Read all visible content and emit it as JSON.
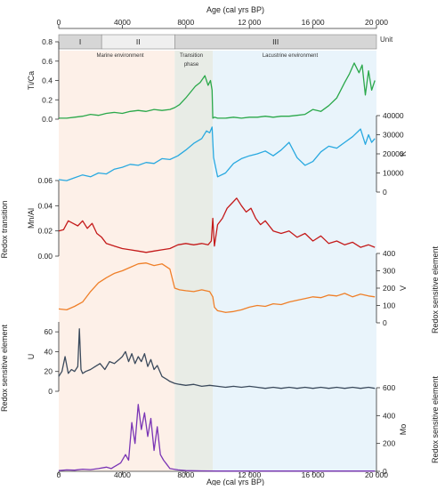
{
  "chart_data": {
    "type": "line",
    "title": "",
    "x_axis": {
      "label": "Age (cal yrs BP)",
      "range": [
        0,
        20000
      ],
      "ticks": [
        0,
        4000,
        8000,
        12000,
        16000,
        20000
      ],
      "tick_labels": [
        "0",
        "4000",
        "8000",
        "12 000",
        "16 000",
        "20 000"
      ]
    },
    "units_bar": {
      "label": "Unit",
      "units": [
        {
          "name": "I",
          "from": 0,
          "to": 2700,
          "color": "#d6d6d6"
        },
        {
          "name": "II",
          "from": 2700,
          "to": 7300,
          "color": "#efefef"
        },
        {
          "name": "III",
          "from": 7300,
          "to": 20000,
          "color": "#d6d6d6"
        }
      ]
    },
    "environments": [
      {
        "label": "Marine environment",
        "from": 0,
        "to": 7300,
        "color": "#fdf0e8"
      },
      {
        "label": "Transition phase",
        "from": 7300,
        "to": 9700,
        "color": "#e8ece6"
      },
      {
        "label": "Lacustrine environment",
        "from": 9700,
        "to": 20000,
        "color": "#e9f4fb"
      }
    ],
    "side_labels": [
      {
        "text": "Redox transition",
        "side": "left"
      },
      {
        "text": "Redox sensitive element",
        "side": "left"
      },
      {
        "text": "Redox sensitive element",
        "side": "right"
      },
      {
        "text": "Redox sensitive element",
        "side": "right"
      }
    ],
    "series": [
      {
        "label": "Ti/Ca",
        "side": "left",
        "color": "#2aa84a",
        "ylim": [
          0,
          0.8
        ],
        "ticks": [
          0.0,
          0.2,
          0.4,
          0.6,
          0.8
        ],
        "tick_labels": [
          "0.0",
          "0.2",
          "0.4",
          "0.6",
          "0.8"
        ],
        "x": [
          0,
          500,
          1000,
          1500,
          2000,
          2500,
          3000,
          3500,
          4000,
          4500,
          5000,
          5500,
          6000,
          6500,
          7000,
          7300,
          7600,
          8000,
          8300,
          8600,
          8900,
          9200,
          9400,
          9550,
          9650,
          9700,
          9800,
          10000,
          10500,
          11000,
          11500,
          12000,
          12500,
          13000,
          13500,
          14000,
          14500,
          15000,
          15500,
          16000,
          16500,
          17000,
          17500,
          18000,
          18300,
          18600,
          18900,
          19100,
          19300,
          19500,
          19700,
          19900
        ],
        "y": [
          0.01,
          0.01,
          0.02,
          0.03,
          0.05,
          0.04,
          0.06,
          0.07,
          0.06,
          0.08,
          0.09,
          0.08,
          0.1,
          0.09,
          0.1,
          0.12,
          0.15,
          0.22,
          0.28,
          0.34,
          0.38,
          0.45,
          0.35,
          0.4,
          0.3,
          0.01,
          0.02,
          0.01,
          0.01,
          0.02,
          0.01,
          0.02,
          0.02,
          0.03,
          0.02,
          0.03,
          0.03,
          0.04,
          0.05,
          0.1,
          0.08,
          0.14,
          0.22,
          0.38,
          0.47,
          0.58,
          0.48,
          0.56,
          0.25,
          0.5,
          0.3,
          0.4
        ]
      },
      {
        "label": "K",
        "side": "right",
        "color": "#29a9e0",
        "ylim": [
          0,
          40000
        ],
        "ticks": [
          0,
          10000,
          20000,
          30000,
          40000
        ],
        "tick_labels": [
          "0",
          "10000",
          "20000",
          "30000",
          "40000"
        ],
        "x": [
          0,
          500,
          1000,
          1500,
          2000,
          2500,
          3000,
          3500,
          4000,
          4500,
          5000,
          5500,
          6000,
          6500,
          7000,
          7500,
          8000,
          8500,
          9000,
          9300,
          9500,
          9650,
          9750,
          10000,
          10500,
          11000,
          11500,
          12000,
          12500,
          13000,
          13500,
          14000,
          14500,
          15000,
          15500,
          16000,
          16500,
          17000,
          17500,
          18000,
          18500,
          19000,
          19300,
          19500,
          19700,
          19900
        ],
        "y": [
          6500,
          6000,
          7500,
          9000,
          8000,
          10000,
          9500,
          12000,
          13000,
          14500,
          14000,
          15500,
          15000,
          17500,
          17000,
          19000,
          22000,
          25500,
          28000,
          32000,
          31000,
          34000,
          18000,
          8000,
          10000,
          15000,
          17500,
          19000,
          20000,
          21500,
          19000,
          22000,
          26000,
          18000,
          14000,
          16000,
          21000,
          24000,
          23000,
          26000,
          29000,
          33000,
          25000,
          30000,
          26000,
          28000
        ]
      },
      {
        "label": "Mn/Al",
        "side": "left",
        "color": "#c41a1a",
        "ylim": [
          0,
          0.06
        ],
        "ticks": [
          0.0,
          0.02,
          0.04,
          0.06
        ],
        "tick_labels": [
          "0.00",
          "0.02",
          "0.04",
          "0.06"
        ],
        "x": [
          0,
          300,
          600,
          900,
          1200,
          1500,
          1800,
          2100,
          2400,
          2700,
          3000,
          3500,
          4000,
          4500,
          5000,
          5500,
          6000,
          6500,
          7000,
          7500,
          8000,
          8500,
          9000,
          9400,
          9600,
          9700,
          9800,
          10000,
          10300,
          10600,
          10900,
          11200,
          11500,
          11800,
          12100,
          12400,
          12700,
          13000,
          13500,
          14000,
          14500,
          15000,
          15500,
          16000,
          16500,
          17000,
          17500,
          18000,
          18500,
          19000,
          19500,
          19900
        ],
        "y": [
          0.02,
          0.021,
          0.028,
          0.026,
          0.024,
          0.028,
          0.022,
          0.026,
          0.018,
          0.015,
          0.01,
          0.008,
          0.006,
          0.005,
          0.004,
          0.003,
          0.004,
          0.005,
          0.006,
          0.009,
          0.01,
          0.009,
          0.01,
          0.009,
          0.012,
          0.03,
          0.008,
          0.025,
          0.03,
          0.038,
          0.042,
          0.046,
          0.04,
          0.035,
          0.038,
          0.03,
          0.025,
          0.028,
          0.02,
          0.018,
          0.02,
          0.015,
          0.018,
          0.012,
          0.016,
          0.01,
          0.012,
          0.009,
          0.011,
          0.007,
          0.009,
          0.007
        ]
      },
      {
        "label": "V",
        "side": "right",
        "color": "#ef7f28",
        "ylim": [
          0,
          400
        ],
        "ticks": [
          0,
          100,
          200,
          300,
          400
        ],
        "tick_labels": [
          "0",
          "100",
          "200",
          "300",
          "400"
        ],
        "x": [
          0,
          500,
          1000,
          1500,
          2000,
          2500,
          3000,
          3500,
          4000,
          4500,
          5000,
          5500,
          6000,
          6500,
          7000,
          7300,
          7600,
          8000,
          8500,
          9000,
          9500,
          9700,
          9800,
          10000,
          10500,
          11000,
          11500,
          12000,
          12500,
          13000,
          13500,
          14000,
          14500,
          15000,
          15500,
          16000,
          16500,
          17000,
          17500,
          18000,
          18500,
          19000,
          19500,
          19900
        ],
        "y": [
          80,
          75,
          95,
          120,
          180,
          230,
          260,
          285,
          300,
          320,
          340,
          345,
          330,
          340,
          310,
          200,
          190,
          185,
          180,
          190,
          180,
          150,
          90,
          70,
          60,
          65,
          75,
          90,
          100,
          95,
          110,
          105,
          120,
          130,
          140,
          150,
          145,
          160,
          155,
          170,
          150,
          165,
          155,
          150
        ]
      },
      {
        "label": "U",
        "side": "left",
        "color": "#3b4a5c",
        "ylim": [
          0,
          70
        ],
        "ticks": [
          0,
          20,
          40,
          60
        ],
        "tick_labels": [
          "0",
          "20",
          "40",
          "60"
        ],
        "x": [
          0,
          200,
          400,
          600,
          800,
          1000,
          1200,
          1300,
          1400,
          1500,
          1700,
          2000,
          2300,
          2600,
          2900,
          3200,
          3500,
          3800,
          4000,
          4200,
          4400,
          4600,
          4800,
          5000,
          5200,
          5400,
          5600,
          5800,
          6000,
          6200,
          6500,
          6800,
          7000,
          7300,
          7600,
          8000,
          8500,
          9000,
          9500,
          10000,
          10500,
          11000,
          11500,
          12000,
          12500,
          13000,
          13500,
          14000,
          14500,
          15000,
          15500,
          16000,
          16500,
          17000,
          17500,
          18000,
          18500,
          19000,
          19500,
          19900
        ],
        "y": [
          15,
          20,
          35,
          18,
          22,
          20,
          25,
          63,
          22,
          18,
          20,
          22,
          25,
          28,
          22,
          30,
          28,
          32,
          35,
          40,
          30,
          38,
          28,
          35,
          30,
          38,
          25,
          32,
          22,
          26,
          15,
          12,
          10,
          8,
          7,
          6,
          7,
          5,
          6,
          5,
          4,
          5,
          4,
          5,
          4,
          3,
          4,
          3,
          4,
          3,
          4,
          3,
          4,
          3,
          4,
          3,
          4,
          3,
          4,
          3
        ]
      },
      {
        "label": "Mo",
        "side": "right",
        "color": "#7a35b5",
        "ylim": [
          0,
          600
        ],
        "ticks": [
          0,
          200,
          400,
          600
        ],
        "tick_labels": [
          "0",
          "200",
          "400",
          "600"
        ],
        "x": [
          0,
          500,
          1000,
          1500,
          2000,
          2500,
          3000,
          3300,
          3600,
          3900,
          4200,
          4400,
          4600,
          4800,
          5000,
          5200,
          5400,
          5600,
          5800,
          6000,
          6200,
          6400,
          6600,
          6800,
          7000,
          7500,
          8000,
          9000,
          10000,
          12000,
          14000,
          16000,
          18000,
          19900
        ],
        "y": [
          5,
          10,
          8,
          15,
          12,
          20,
          30,
          20,
          40,
          60,
          120,
          80,
          350,
          200,
          480,
          300,
          420,
          250,
          380,
          150,
          320,
          120,
          80,
          50,
          20,
          10,
          5,
          3,
          2,
          2,
          2,
          2,
          2,
          2
        ]
      }
    ]
  }
}
